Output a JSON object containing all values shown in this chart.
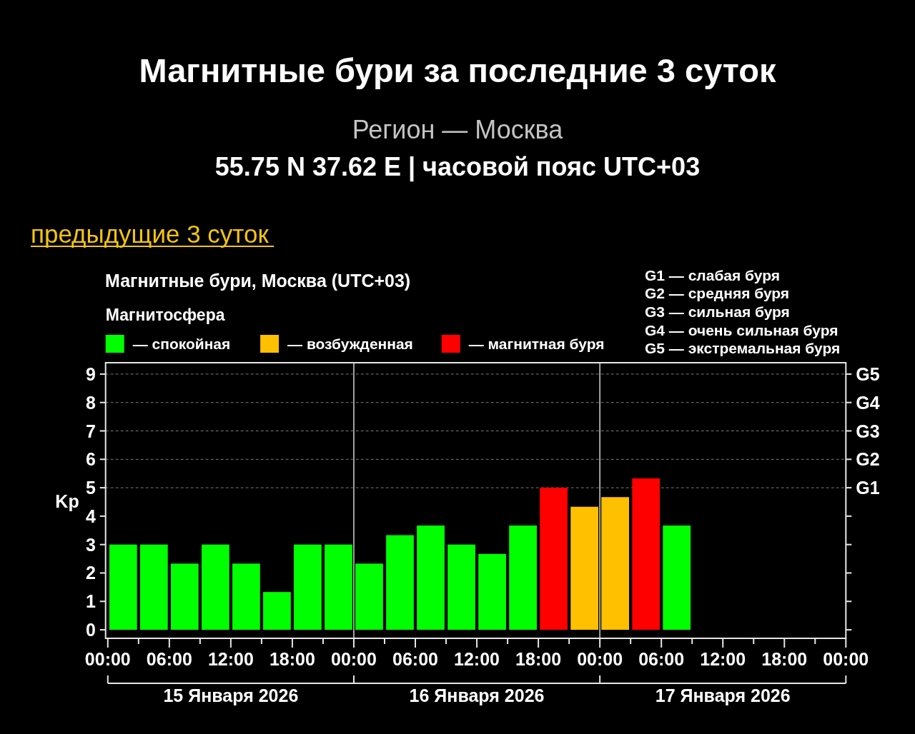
{
  "chart_data": {
    "type": "bar",
    "title": "Магнитные бури за последние 3 суток",
    "subtitle": "Регион — Москва\n55.75 N 37.62 E | часовой пояс UTC+03",
    "annotations": [
      "предыдущие 3 суток",
      "Магнитные бури, Москва (UTC+03)",
      "G1 — слабая буря",
      "G2 — средняя буря",
      "G3 — сильная буря",
      "G4 — очень сильная буря",
      "G5 — экстремальная буря"
    ],
    "ylabel": "Kp",
    "legend_title": "Магнитосфера",
    "legend": "top left",
    "x": [
      "2026-01-15T01:30",
      "2026-01-15T04:30",
      "2026-01-15T07:30",
      "2026-01-15T10:30",
      "2026-01-15T13:30",
      "2026-01-15T16:30",
      "2026-01-15T19:30",
      "2026-01-15T22:30",
      "2026-01-16T01:30",
      "2026-01-16T04:30",
      "2026-01-16T07:30",
      "2026-01-16T10:30",
      "2026-01-16T13:30",
      "2026-01-16T16:30",
      "2026-01-16T19:30",
      "2026-01-16T22:30",
      "2026-01-17T01:30",
      "2026-01-17T04:30",
      "2026-01-17T07:30"
    ],
    "series": [
      {
        "name": "— спокойная",
        "color": "#00ff00",
        "values": [
          3,
          3,
          2.33,
          3,
          2.33,
          1.33,
          3,
          3,
          2.33,
          3.33,
          3.67,
          3,
          2.67,
          3.67,
          null,
          null,
          null,
          null,
          3.67
        ]
      },
      {
        "name": "— возбужденная",
        "color": "#ffc000",
        "values": [
          null,
          null,
          null,
          null,
          null,
          null,
          null,
          null,
          null,
          null,
          null,
          null,
          null,
          null,
          null,
          4.33,
          4.67,
          null,
          null
        ]
      },
      {
        "name": "— магнитная буря",
        "color": "#ff0000",
        "values": [
          null,
          null,
          null,
          null,
          null,
          null,
          null,
          null,
          null,
          null,
          null,
          null,
          null,
          null,
          5,
          null,
          null,
          5.33,
          null
        ]
      }
    ],
    "xlim": [
      "2026-01-14T23:47",
      "2026-01-18T00:00"
    ],
    "xticks": [
      {
        "value": "2026-01-15T00:00",
        "label": "00:00"
      },
      {
        "value": "2026-01-15T03:00",
        "label": null
      },
      {
        "value": "2026-01-15T06:00",
        "label": "06:00"
      },
      {
        "value": "2026-01-15T09:00",
        "label": null
      },
      {
        "value": "2026-01-15T12:00",
        "label": "12:00"
      },
      {
        "value": "2026-01-15T15:00",
        "label": null
      },
      {
        "value": "2026-01-15T18:00",
        "label": "18:00"
      },
      {
        "value": "2026-01-15T21:00",
        "label": null
      },
      {
        "value": "2026-01-16T00:00",
        "label": "00:00"
      },
      {
        "value": "2026-01-16T03:00",
        "label": null
      },
      {
        "value": "2026-01-16T06:00",
        "label": "06:00"
      },
      {
        "value": "2026-01-16T09:00",
        "label": null
      },
      {
        "value": "2026-01-16T12:00",
        "label": "12:00"
      },
      {
        "value": "2026-01-16T15:00",
        "label": null
      },
      {
        "value": "2026-01-16T18:00",
        "label": "18:00"
      },
      {
        "value": "2026-01-16T21:00",
        "label": null
      },
      {
        "value": "2026-01-17T00:00",
        "label": "00:00"
      },
      {
        "value": "2026-01-17T03:00",
        "label": null
      },
      {
        "value": "2026-01-17T06:00",
        "label": "06:00"
      },
      {
        "value": "2026-01-17T09:00",
        "label": null
      },
      {
        "value": "2026-01-17T12:00",
        "label": "12:00"
      },
      {
        "value": "2026-01-17T15:00",
        "label": null
      },
      {
        "value": "2026-01-17T18:00",
        "label": "18:00"
      },
      {
        "value": "2026-01-17T21:00",
        "label": null
      },
      {
        "value": "2026-01-18T00:00",
        "label": "00:00"
      }
    ],
    "x2lim": [
      "2026-01-14T23:47",
      "2026-01-18T00:00"
    ],
    "x2ticks": [
      {
        "value": "2026-01-15T00:00",
        "label": null
      },
      {
        "value": "2026-01-15T12:00",
        "label": "15 Января 2026"
      },
      {
        "value": "2026-01-16T00:00",
        "label": null
      },
      {
        "value": "2026-01-16T12:00",
        "label": "16 Января 2026"
      },
      {
        "value": "2026-01-17T00:00",
        "label": null
      },
      {
        "value": "2026-01-17T12:00",
        "label": "17 Января 2026"
      },
      {
        "value": "2026-01-18T00:00",
        "label": null
      }
    ],
    "ylim": [
      -0.3,
      9.4
    ],
    "yticks": [
      0,
      1,
      2,
      3,
      4,
      5,
      6,
      7,
      8,
      9
    ],
    "ref_lines": [
      {
        "axis": "x",
        "value": "2026-01-16T00:00",
        "color": "#c8c8c8"
      },
      {
        "axis": "x",
        "value": "2026-01-17T00:00",
        "color": "#c8c8c8"
      },
      {
        "axis": "y",
        "value": 5,
        "label": "G1",
        "color": "#7a7a7a",
        "line_style": "dashed"
      },
      {
        "axis": "y",
        "value": 6,
        "label": "G2",
        "color": "#7a7a7a",
        "line_style": "dashed"
      },
      {
        "axis": "y",
        "value": 7,
        "label": "G3",
        "color": "#7a7a7a",
        "line_style": "dashed"
      },
      {
        "axis": "y",
        "value": 8,
        "label": "G4",
        "color": "#7a7a7a",
        "line_style": "dashed"
      },
      {
        "axis": "y",
        "value": 9,
        "label": "G5",
        "color": "#7a7a7a",
        "line_style": "dashed"
      }
    ]
  }
}
